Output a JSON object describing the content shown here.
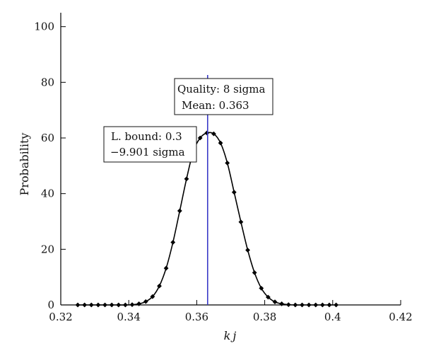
{
  "chart_data": {
    "type": "line",
    "title": "",
    "xlabel": "kj",
    "ylabel": "Probability",
    "xlim": [
      0.32,
      0.42
    ],
    "ylim": [
      0,
      105
    ],
    "x_ticks": [
      0.32,
      0.34,
      0.36,
      0.38,
      0.4,
      0.42
    ],
    "x_tick_labels": [
      "0.32",
      "0.34",
      "0.36",
      "0.38",
      "0.4",
      "0.42"
    ],
    "y_ticks": [
      0,
      20,
      40,
      60,
      80,
      100
    ],
    "y_tick_labels": [
      "0",
      "20",
      "40",
      "60",
      "80",
      "100"
    ],
    "grid": false,
    "series": [
      {
        "x": [
          0.325,
          0.327,
          0.329,
          0.331,
          0.333,
          0.335,
          0.337,
          0.339,
          0.341,
          0.343,
          0.345,
          0.347,
          0.349,
          0.351,
          0.353,
          0.355,
          0.357,
          0.359,
          0.361,
          0.363,
          0.365,
          0.367,
          0.369,
          0.371,
          0.373,
          0.375,
          0.377,
          0.379,
          0.381,
          0.383,
          0.385,
          0.387,
          0.389,
          0.391,
          0.393,
          0.395,
          0.397,
          0.399,
          0.401
        ],
        "y": [
          0,
          0,
          0,
          0,
          0,
          0,
          0,
          0,
          0.1,
          0.4,
          1.2,
          3.0,
          6.8,
          13.2,
          22.5,
          33.8,
          45.3,
          55.2,
          60.0,
          61.8,
          61.5,
          58.2,
          51.0,
          40.5,
          29.8,
          19.7,
          11.6,
          6.0,
          2.8,
          1.1,
          0.4,
          0.1,
          0,
          0,
          0,
          0,
          0,
          0,
          0
        ]
      }
    ],
    "vline": {
      "x": 0.3632,
      "color": "#3a3ac8"
    },
    "annotations": [
      {
        "lines": [
          "Quality: 8 sigma",
          "Mean: 0.363"
        ]
      },
      {
        "lines": [
          "L. bound: 0.3",
          "−9.901 sigma"
        ]
      }
    ]
  }
}
